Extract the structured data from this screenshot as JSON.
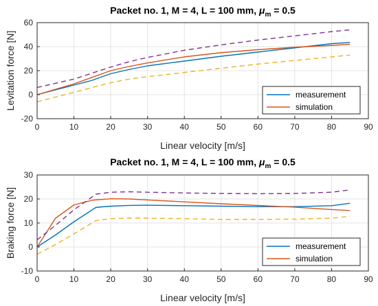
{
  "chart_data": [
    {
      "type": "line",
      "title": "Packet no. 1, M = 4, L = 100 mm, μm = 0.5",
      "title_parts": {
        "main": "Packet no. 1, M = 4, L = 100 mm, ",
        "mu": "μ",
        "sub": "m",
        "tail": " = 0.5"
      },
      "xlabel": "Linear velocity [m/s]",
      "ylabel": "Levitation force [N]",
      "xlim": [
        0,
        90
      ],
      "ylim": [
        -20,
        60
      ],
      "xticks": [
        0,
        10,
        20,
        30,
        40,
        50,
        60,
        70,
        80,
        90
      ],
      "yticks": [
        -20,
        0,
        20,
        40,
        60
      ],
      "grid": true,
      "legend_position": "bottom-right",
      "series": [
        {
          "name": "measurement",
          "color": "#0072BD",
          "dashed": false,
          "in_legend": true,
          "x": [
            0,
            5,
            10,
            15,
            20,
            25,
            30,
            40,
            50,
            60,
            70,
            80,
            85
          ],
          "y": [
            0,
            4,
            8,
            12,
            17.5,
            21,
            24,
            28,
            32,
            35.5,
            39,
            42.5,
            43.5
          ]
        },
        {
          "name": "simulation",
          "color": "#D95319",
          "dashed": false,
          "in_legend": true,
          "x": [
            0,
            10,
            20,
            25,
            30,
            40,
            50,
            60,
            70,
            80,
            85
          ],
          "y": [
            0,
            9,
            20,
            23.5,
            26.5,
            31.5,
            35,
            37.5,
            39.5,
            41,
            42
          ]
        },
        {
          "color": "#7E2F8E",
          "dashed": true,
          "in_legend": false,
          "x": [
            0,
            10,
            20,
            25,
            30,
            40,
            50,
            60,
            70,
            80,
            85
          ],
          "y": [
            6,
            13,
            23,
            27.5,
            31,
            37,
            41.5,
            45.5,
            49,
            52.5,
            54
          ]
        },
        {
          "color": "#EDB120",
          "dashed": true,
          "in_legend": false,
          "x": [
            0,
            5,
            10,
            15,
            20,
            25,
            30,
            40,
            50,
            60,
            70,
            80,
            85
          ],
          "y": [
            -6,
            -2,
            2,
            6,
            10,
            13,
            15,
            18.5,
            22,
            25.5,
            28.5,
            31.5,
            33
          ]
        }
      ]
    },
    {
      "type": "line",
      "title": "Packet no. 1, M = 4, L = 100 mm, μm = 0.5",
      "title_parts": {
        "main": "Packet no. 1, M = 4, L = 100 mm, ",
        "mu": "μ",
        "sub": "m",
        "tail": " = 0.5"
      },
      "xlabel": "Linear velocity [m/s]",
      "ylabel": "Braking force [N]",
      "xlim": [
        0,
        90
      ],
      "ylim": [
        -10,
        30
      ],
      "xticks": [
        0,
        10,
        20,
        30,
        40,
        50,
        60,
        70,
        80,
        90
      ],
      "yticks": [
        -10,
        0,
        10,
        20,
        30
      ],
      "grid": true,
      "legend_position": "bottom-right",
      "series": [
        {
          "name": "measurement",
          "color": "#0072BD",
          "dashed": false,
          "in_legend": true,
          "x": [
            0,
            5,
            10,
            16,
            20,
            25,
            30,
            40,
            50,
            60,
            70,
            80,
            85
          ],
          "y": [
            0,
            5,
            10.5,
            16.5,
            17,
            17.3,
            17.4,
            17.2,
            17,
            16.8,
            16.8,
            17.2,
            18.2
          ]
        },
        {
          "name": "simulation",
          "color": "#D95319",
          "dashed": false,
          "in_legend": true,
          "x": [
            0,
            5,
            10,
            15,
            20,
            25,
            30,
            40,
            50,
            60,
            70,
            80,
            85
          ],
          "y": [
            0,
            12,
            17.5,
            19.5,
            20.1,
            20,
            19.6,
            18.8,
            18,
            17.3,
            16.6,
            15.6,
            15.2
          ]
        },
        {
          "color": "#7E2F8E",
          "dashed": true,
          "in_legend": false,
          "x": [
            0,
            5,
            10,
            16,
            20,
            25,
            30,
            40,
            50,
            60,
            70,
            80,
            85
          ],
          "y": [
            3,
            9,
            15.5,
            22,
            22.8,
            23,
            22.8,
            22.5,
            22.3,
            22.2,
            22.3,
            22.8,
            23.8
          ]
        },
        {
          "color": "#EDB120",
          "dashed": true,
          "in_legend": false,
          "x": [
            0,
            5,
            10,
            16,
            20,
            25,
            30,
            40,
            50,
            60,
            70,
            80,
            85
          ],
          "y": [
            -3,
            1,
            5.5,
            11,
            11.8,
            12,
            12,
            11.8,
            11.5,
            11.5,
            11.6,
            12,
            12.8
          ]
        }
      ]
    }
  ]
}
